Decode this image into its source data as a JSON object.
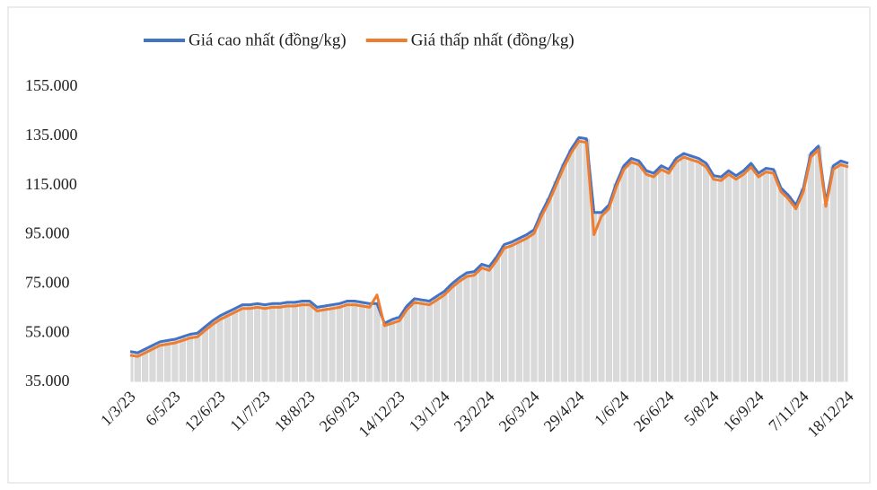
{
  "chart_data": {
    "type": "line",
    "categories": [
      "1/3/23",
      null,
      null,
      null,
      null,
      null,
      "6/5/23",
      null,
      null,
      null,
      null,
      null,
      "12/6/23",
      null,
      null,
      null,
      null,
      null,
      "11/7/23",
      null,
      null,
      null,
      null,
      null,
      "18/8/23",
      null,
      null,
      null,
      null,
      null,
      "26/9/23",
      null,
      null,
      null,
      null,
      null,
      "14/12/23",
      null,
      null,
      null,
      null,
      null,
      "13/1/24",
      null,
      null,
      null,
      null,
      null,
      "23/2/24",
      null,
      null,
      null,
      null,
      null,
      "26/3/24",
      null,
      null,
      null,
      null,
      null,
      "29/4/24",
      null,
      null,
      null,
      null,
      null,
      "1/6/24",
      null,
      null,
      null,
      null,
      null,
      "26/6/24",
      null,
      null,
      null,
      null,
      null,
      "5/8/24",
      null,
      null,
      null,
      null,
      null,
      "16/9/24",
      null,
      null,
      null,
      null,
      null,
      "7/11/24",
      null,
      null,
      null,
      null,
      null,
      "18/12/24"
    ],
    "series": [
      {
        "name": "Giá cao nhất (đồng/kg)",
        "color": "#4472c4",
        "values": [
          47500,
          47000,
          48500,
          50000,
          51500,
          52000,
          52500,
          53500,
          54500,
          55000,
          57500,
          60000,
          62000,
          63500,
          65000,
          66500,
          66500,
          67000,
          66500,
          67000,
          67000,
          67500,
          67500,
          68000,
          68000,
          65500,
          66000,
          66500,
          67000,
          68000,
          68000,
          67500,
          67000,
          67000,
          59000,
          60500,
          61500,
          66000,
          69000,
          68500,
          68000,
          70000,
          72000,
          75000,
          77500,
          79500,
          80000,
          83000,
          82000,
          86000,
          91000,
          92000,
          93500,
          95000,
          97000,
          104000,
          110000,
          117000,
          124000,
          130000,
          134500,
          134000,
          104000,
          104000,
          107000,
          116000,
          123000,
          126000,
          125000,
          121000,
          120000,
          123000,
          121500,
          126000,
          128000,
          127000,
          126000,
          124000,
          119000,
          118500,
          121000,
          119000,
          121000,
          124000,
          120000,
          122000,
          121500,
          114000,
          111000,
          107000,
          114000,
          128000,
          131000,
          108000,
          123000,
          125000,
          124000
        ]
      },
      {
        "name": "Giá thấp nhất (đồng/kg)",
        "color": "#ed7d31",
        "values": [
          46000,
          45500,
          47000,
          48500,
          50000,
          50500,
          51000,
          52000,
          53000,
          53500,
          56000,
          58500,
          60500,
          62000,
          63500,
          65000,
          65000,
          65500,
          65000,
          65500,
          65500,
          66000,
          66000,
          66500,
          66500,
          64000,
          64500,
          65000,
          65500,
          66500,
          66500,
          66000,
          65500,
          70500,
          58000,
          59000,
          60000,
          64500,
          67500,
          67000,
          66500,
          68500,
          70500,
          73500,
          76000,
          78000,
          78500,
          81500,
          80500,
          84500,
          89500,
          90500,
          92000,
          93500,
          95500,
          102500,
          108500,
          115500,
          122500,
          128500,
          133000,
          132500,
          95000,
          102500,
          105500,
          114500,
          121500,
          124500,
          123500,
          119500,
          118500,
          121500,
          120000,
          124500,
          126500,
          125500,
          124500,
          122500,
          117500,
          117000,
          119500,
          117500,
          119500,
          122500,
          118500,
          120500,
          120000,
          112500,
          109500,
          105500,
          112500,
          126500,
          129500,
          106500,
          121500,
          123500,
          122500
        ]
      }
    ],
    "ylim": [
      35000,
      155000
    ],
    "yticks": [
      {
        "value": 35000,
        "label": "35.000"
      },
      {
        "value": 55000,
        "label": "55.000"
      },
      {
        "value": 75000,
        "label": "75.000"
      },
      {
        "value": 95000,
        "label": "95.000"
      },
      {
        "value": 115000,
        "label": "115.000"
      },
      {
        "value": 135000,
        "label": "135.000"
      },
      {
        "value": 155000,
        "label": "155.000"
      }
    ],
    "area_color": "#d9d9d9",
    "legend": "top"
  }
}
